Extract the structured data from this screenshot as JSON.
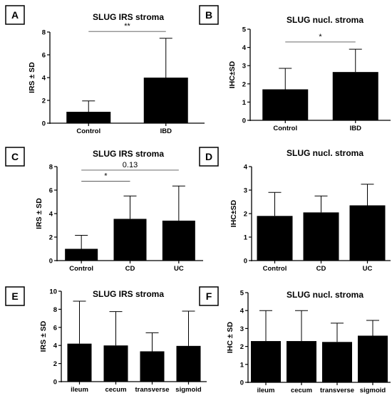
{
  "chart_data": [
    {
      "panel": "A",
      "type": "bar",
      "title": "SLUG IRS stroma",
      "ylabel": "IRS ± SD",
      "xlabel": "",
      "categories": [
        "Control",
        "IBD"
      ],
      "values": [
        1.0,
        4.0
      ],
      "errors": [
        0.95,
        3.45
      ],
      "ylim": [
        0,
        8
      ],
      "yticks": [
        0,
        2,
        4,
        6,
        8
      ],
      "significance": [
        {
          "from": 0,
          "to": 1,
          "label": "**",
          "y": 8.05
        }
      ]
    },
    {
      "panel": "B",
      "type": "bar",
      "title": "SLUG nucl. stroma",
      "ylabel": "IHC±SD",
      "xlabel": "",
      "categories": [
        "Control",
        "IBD"
      ],
      "values": [
        1.7,
        2.65
      ],
      "errors": [
        1.15,
        1.25
      ],
      "ylim": [
        0,
        5
      ],
      "yticks": [
        0,
        1,
        2,
        3,
        4,
        5
      ],
      "significance": [
        {
          "from": 0,
          "to": 1,
          "label": "*",
          "y": 4.3
        }
      ]
    },
    {
      "panel": "C",
      "type": "bar",
      "title": "SLUG IRS stroma",
      "ylabel": "IRS ± SD",
      "xlabel": "",
      "categories": [
        "Control",
        "CD",
        "UC"
      ],
      "values": [
        1.0,
        3.55,
        3.4
      ],
      "errors": [
        1.15,
        1.95,
        2.95
      ],
      "ylim": [
        0,
        8
      ],
      "yticks": [
        0,
        2,
        4,
        6,
        8
      ],
      "significance": [
        {
          "from": 0,
          "to": 1,
          "label": "*",
          "y": 6.75
        },
        {
          "from": 0,
          "to": 2,
          "label": "0.13",
          "y": 7.7
        }
      ]
    },
    {
      "panel": "D",
      "type": "bar",
      "title": "SLUG nucl. stroma",
      "ylabel": "IHC±SD",
      "xlabel": "",
      "categories": [
        "Control",
        "CD",
        "UC"
      ],
      "values": [
        1.9,
        2.05,
        2.35
      ],
      "errors": [
        1.0,
        0.7,
        0.9
      ],
      "ylim": [
        0,
        4
      ],
      "yticks": [
        0,
        1,
        2,
        3,
        4
      ],
      "significance": []
    },
    {
      "panel": "E",
      "type": "bar",
      "title": "SLUG IRS stroma",
      "ylabel": "IRS ± SD",
      "xlabel": "",
      "categories": [
        "ileum",
        "cecum",
        "transverse",
        "sigmoid"
      ],
      "values": [
        4.2,
        4.0,
        3.35,
        3.95
      ],
      "errors": [
        4.7,
        3.75,
        2.05,
        3.85
      ],
      "ylim": [
        0,
        10
      ],
      "yticks": [
        0,
        2,
        4,
        6,
        8,
        10
      ],
      "significance": []
    },
    {
      "panel": "F",
      "type": "bar",
      "title": "SLUG nucl. stroma",
      "ylabel": "IHC ± SD",
      "xlabel": "",
      "categories": [
        "ileum",
        "cecum",
        "transverse",
        "sigmoid"
      ],
      "values": [
        2.3,
        2.3,
        2.25,
        2.6
      ],
      "errors": [
        1.7,
        1.7,
        1.05,
        0.85
      ],
      "ylim": [
        0,
        5
      ],
      "yticks": [
        0,
        1,
        2,
        3,
        4,
        5
      ],
      "significance": []
    }
  ]
}
